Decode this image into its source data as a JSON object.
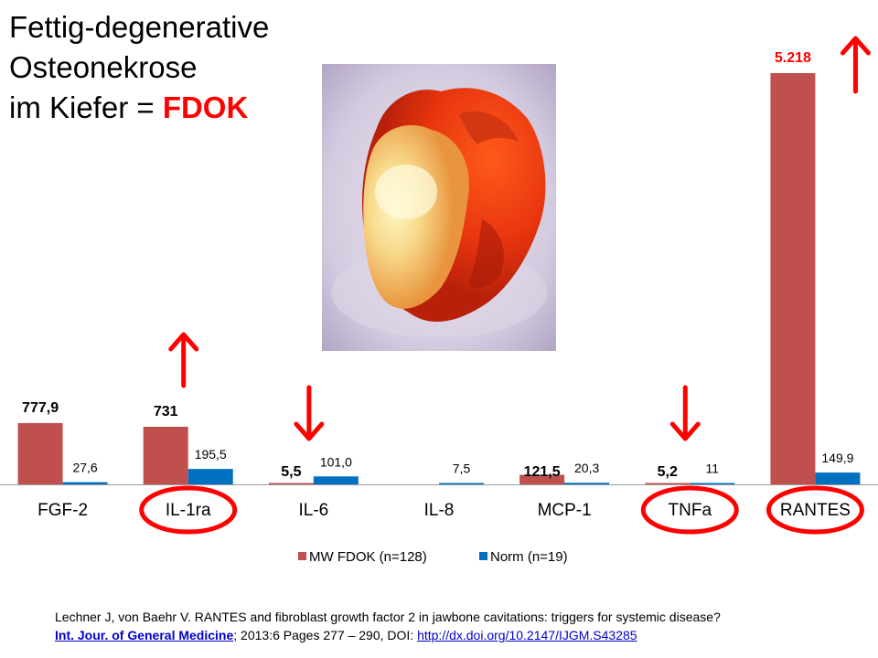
{
  "title": {
    "line1": "Fettig-degenerative",
    "line2": "Osteonekrose",
    "line3_prefix": "im Kiefer = ",
    "line3_accent": "FDOK"
  },
  "reference": {
    "line1": "Lechner J, von Baehr V. RANTES and fibroblast growth factor 2 in jawbone cavitations: triggers for systemic disease?",
    "journal": "Int. Jour. of General Medicine",
    "details": "; 2013:6 Pages 277 – 290, DOI: ",
    "doi": "http://dx.doi.org/10.2147/IJGM.S43285"
  },
  "chart_data": {
    "type": "bar",
    "categories": [
      "FGF-2",
      "IL-1ra",
      "IL-6",
      "IL-8",
      "MCP-1",
      "TNFa",
      "RANTES"
    ],
    "series": [
      {
        "name": "MW FDOK (n=128)",
        "color": "#c0504d",
        "values": [
          777.9,
          731,
          5.5,
          null,
          121.5,
          5.2,
          5218
        ],
        "labels": [
          "777,9",
          "731",
          "5,5",
          "",
          "121,5",
          "5,2",
          "5.218"
        ]
      },
      {
        "name": "Norm (n=19)",
        "color": "#0070c0",
        "values": [
          27.6,
          195.5,
          101.0,
          7.5,
          20.3,
          11,
          149.9
        ],
        "labels": [
          "27,6",
          "195,5",
          "101,0",
          "7,5",
          "20,3",
          "11",
          "149,9"
        ]
      }
    ],
    "ylim": [
      0,
      5218
    ],
    "grid": false,
    "legend": "bottom",
    "emphasis": {
      "circled": [
        "IL-1ra",
        "TNFa",
        "RANTES"
      ],
      "up_arrows": [
        "IL-1ra",
        "RANTES"
      ],
      "down_arrows": [
        "IL-6",
        "TNFa"
      ],
      "highlight_color": "#ff0000"
    }
  }
}
